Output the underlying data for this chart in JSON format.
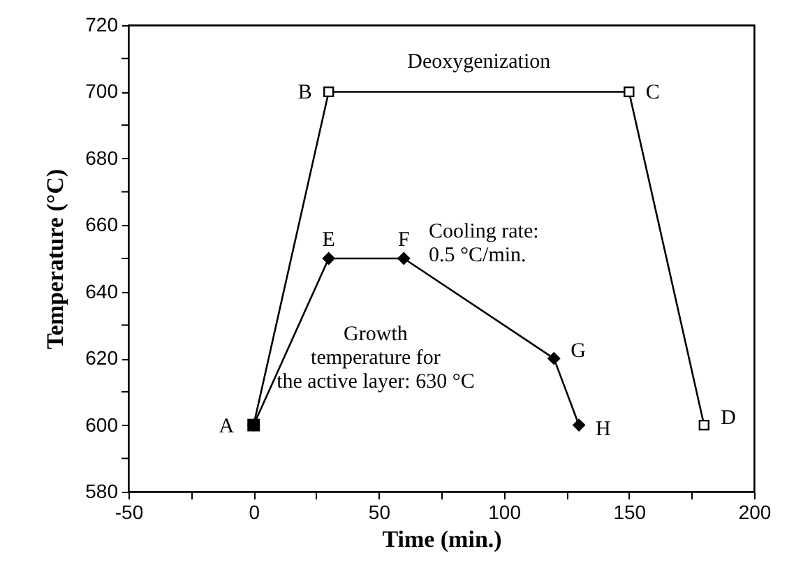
{
  "chart_data": {
    "type": "line",
    "xlabel": "Time  (min.)",
    "ylabel": "Temperature  (°C)",
    "xlim": [
      -50,
      200
    ],
    "xticks": [
      {
        "value": -50,
        "label": "-50"
      },
      {
        "value": -25,
        "label": null
      },
      0,
      {
        "value": 25,
        "label": null
      },
      50,
      {
        "value": 75,
        "label": null
      },
      100,
      {
        "value": 125,
        "label": null
      },
      150,
      {
        "value": 175,
        "label": null
      },
      200
    ],
    "ylim": [
      580,
      720
    ],
    "yticks": [
      580,
      {
        "value": 590,
        "label": null
      },
      600,
      {
        "value": 610,
        "label": null
      },
      620,
      {
        "value": 630,
        "label": null
      },
      640,
      {
        "value": 650,
        "label": null
      },
      660,
      {
        "value": 670,
        "label": null
      },
      680,
      {
        "value": 690,
        "label": null
      },
      700,
      {
        "value": 710,
        "label": null
      },
      720
    ],
    "grid": false,
    "line_style": "solid",
    "series": [
      {
        "color": "#000000",
        "marker": "diamond",
        "x": [
          0,
          30,
          60,
          120,
          130
        ],
        "values": [
          600,
          650,
          650,
          620,
          600
        ]
      },
      {
        "color": "#000000",
        "marker": "square",
        "x": [
          0,
          30,
          150,
          180
        ],
        "values": [
          600,
          700,
          700,
          600
        ]
      },
      {
        "type": "scatter",
        "color": "#000000",
        "marker": "square",
        "x": [
          0
        ],
        "values": [
          600
        ]
      }
    ],
    "annotations": [
      {
        "text": "A",
        "x": 0,
        "y": 600
      },
      {
        "text": "B",
        "x": 30,
        "y": 700
      },
      {
        "text": "C",
        "x": 150,
        "y": 700
      },
      {
        "text": "D",
        "x": 180,
        "y": 600
      },
      {
        "text": "E",
        "x": 30,
        "y": 650
      },
      {
        "text": "F",
        "x": 60,
        "y": 650
      },
      {
        "text": "G",
        "x": 120,
        "y": 620
      },
      {
        "text": "H",
        "x": 130,
        "y": 600
      },
      {
        "text": "Deoxygenization",
        "x": 90,
        "y": 700
      },
      "Cooling rate:\n0.5 °C/min.",
      "Growth\ntemperature for\nthe active layer: 630 °C"
    ]
  }
}
